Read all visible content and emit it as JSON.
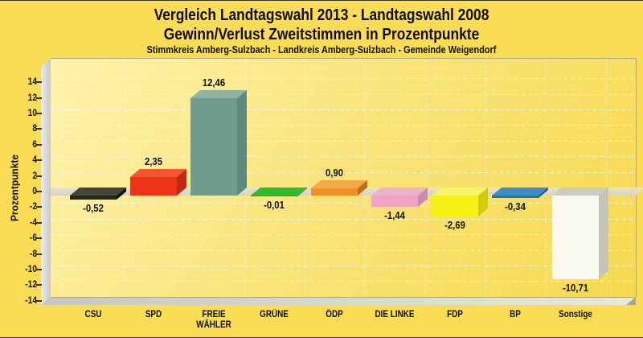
{
  "header": {
    "title_line1": "Vergleich Landtagswahl 2013 - Landtagswahl 2008",
    "title_line2": "Gewinn/Verlust Zweitstimmen in Prozentpunkte",
    "subtitle": "Stimmkreis Amberg-Sulzbach - Landkreis Amberg-Sulzbach - Gemeinde Weigendorf"
  },
  "chart_data": {
    "type": "bar",
    "style": "3d-column",
    "title": "Vergleich Landtagswahl 2013 - Landtagswahl 2008",
    "subtitle": "Gewinn/Verlust Zweitstimmen in Prozentpunkte",
    "caption": "Stimmkreis Amberg-Sulzbach - Landkreis Amberg-Sulzbach - Gemeinde Weigendorf",
    "xlabel": "",
    "ylabel": "Prozentpunkte",
    "ylim": [
      -14,
      14
    ],
    "ytick_step": 2,
    "grid": true,
    "legend": false,
    "categories": [
      "CSU",
      "SPD",
      "FREIE WÄHLER",
      "GRÜNE",
      "ÖDP",
      "DIE LINKE",
      "FDP",
      "BP",
      "Sonstige"
    ],
    "category_lines": [
      [
        "CSU"
      ],
      [
        "SPD"
      ],
      [
        "FREIE",
        "WÄHLER"
      ],
      [
        "GRÜNE"
      ],
      [
        "ÖDP"
      ],
      [
        "DIE LINKE"
      ],
      [
        "FDP"
      ],
      [
        "BP"
      ],
      [
        "Sonstige"
      ]
    ],
    "values": [
      -0.52,
      2.35,
      12.46,
      -0.01,
      0.9,
      -1.44,
      -2.69,
      -0.34,
      -10.71
    ],
    "value_labels": [
      "-0,52",
      "2,35",
      "12,46",
      "-0,01",
      "0,90",
      "-1,44",
      "-2,69",
      "-0,34",
      "-10,71"
    ],
    "bar_colors": [
      {
        "party": "CSU",
        "front": "#26261E",
        "top": "#45453A",
        "side": "#14140E"
      },
      {
        "party": "SPD",
        "front": "#EE3418",
        "top": "#F2552F",
        "side": "#C42810"
      },
      {
        "party": "FREIE WÄHLER",
        "front": "#6F9C8C",
        "top": "#8FB3A5",
        "side": "#5C8A7C"
      },
      {
        "party": "GRÜNE",
        "front": "#27A027",
        "top": "#2FBA2F",
        "side": "#1E7E1E"
      },
      {
        "party": "ÖDP",
        "front": "#EE9122",
        "top": "#F2A948",
        "side": "#BE7012"
      },
      {
        "party": "DIE LINKE",
        "front": "#F2A2C2",
        "top": "#EBB2CE",
        "side": "#CA8AAA"
      },
      {
        "party": "FDP",
        "front": "#F6F112",
        "top": "#F8F46A",
        "side": "#D2CC0E"
      },
      {
        "party": "BP",
        "front": "#2474B4",
        "top": "#3E8CC8",
        "side": "#1A5A8E"
      },
      {
        "party": "Sonstige",
        "front": "#FBFAF0",
        "top": "#CCCBC0",
        "side": "#C6C4B6"
      }
    ]
  },
  "colors": {
    "background": "#FBDD55",
    "plot_gradient_start": "#FEF3AC",
    "plot_gradient_mid": "#FAE57E",
    "plot_gradient_end": "#F7D94E",
    "wall_light": "#EDEDED",
    "wall_dark": "#C6C6C6",
    "floor_left": "#C8C8C0",
    "floor_right": "#E9E8DE",
    "floor_edge": "#A9A694",
    "zero_band_top": "#E6E4CE",
    "zero_band_bottom": "#D6D4BA",
    "plot_border": "#ABA78A",
    "tick": "#33302A",
    "text": "#111111"
  }
}
